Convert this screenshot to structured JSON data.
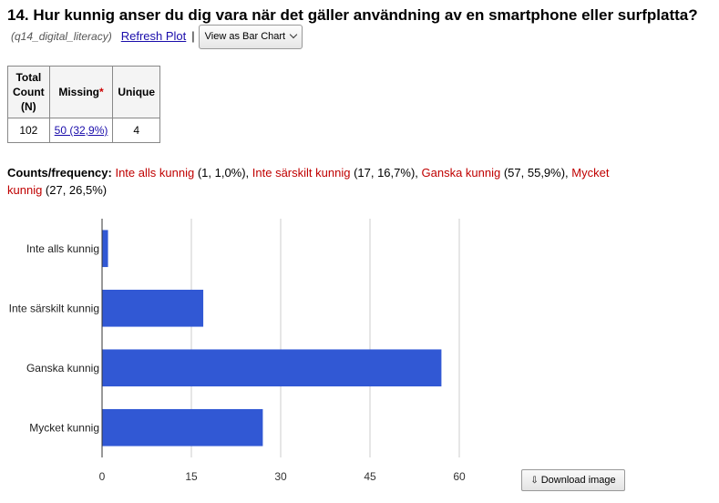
{
  "question": {
    "title": "14. Hur kunnig anser du dig vara när det gäller användning av en smartphone eller surfplatta?",
    "variable": "(q14_digital_literacy)",
    "refresh_label": "Refresh Plot",
    "separator": "|",
    "view_select_label": "View as Bar Chart"
  },
  "stats": {
    "headers": {
      "total_line1": "Total",
      "total_line2": "Count",
      "total_line3": "(N)",
      "missing": "Missing",
      "missing_mark": "*",
      "unique": "Unique"
    },
    "total": "102",
    "missing": "50 (32,9%)",
    "unique": "4"
  },
  "frequency": {
    "label": "Counts/frequency:",
    "items": [
      {
        "category": "Inte alls kunnig",
        "detail": " (1, 1,0%), "
      },
      {
        "category": "Inte särskilt kunnig",
        "detail": " (17, 16,7%), "
      },
      {
        "category": "Ganska kunnig",
        "detail": " (57, 55,9%), "
      },
      {
        "category": "Mycket kunnig",
        "detail": " (27, 26,5%)"
      }
    ]
  },
  "chart_data": {
    "type": "bar",
    "orientation": "horizontal",
    "categories": [
      "Inte alls kunnig",
      "Inte särskilt kunnig",
      "Ganska kunnig",
      "Mycket kunnig"
    ],
    "values": [
      1,
      17,
      57,
      27
    ],
    "xticks": [
      "0",
      "15",
      "30",
      "45",
      "60"
    ],
    "xlim": [
      0,
      60
    ],
    "grid": true,
    "bar_color": "#3158d4",
    "title": "",
    "xlabel": "",
    "ylabel": ""
  },
  "download_label": "Download image"
}
